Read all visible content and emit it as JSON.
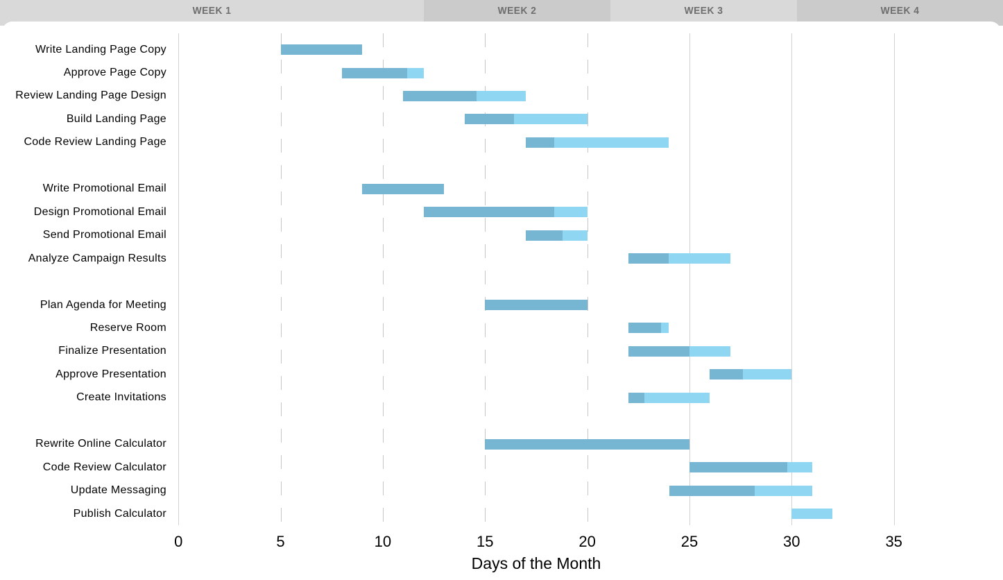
{
  "header": {
    "weeks": [
      "WEEK 1",
      "WEEK 2",
      "WEEK 3",
      "WEEK 4"
    ]
  },
  "axis": {
    "ticks": [
      "0",
      "5",
      "10",
      "15",
      "20",
      "25",
      "30",
      "35"
    ],
    "title": "Days of the Month"
  },
  "colors": {
    "bar_complete": "#76b6d2",
    "bar_remaining": "#8fd6f2",
    "header_band_light": "#d9d9d9",
    "header_band_dark": "#cbcbcb",
    "header_text": "#6e6e6e",
    "grid_solid": "#d2d2d2",
    "grid_dashed": "#c6c6c6",
    "text": "#000000"
  },
  "chart_data": {
    "type": "bar",
    "subtype": "gantt",
    "xlabel": "Days of the Month",
    "xlim": [
      0,
      40
    ],
    "x_ticks": [
      0,
      5,
      10,
      15,
      20,
      25,
      30,
      35
    ],
    "grid": "on",
    "week_bands": [
      {
        "label": "WEEK 1"
      },
      {
        "label": "WEEK 2"
      },
      {
        "label": "WEEK 3"
      },
      {
        "label": "WEEK 4"
      }
    ],
    "gridlines": [
      {
        "day": 0,
        "style": "solid"
      },
      {
        "day": 5,
        "style": "dashed"
      },
      {
        "day": 10,
        "style": "dashed"
      },
      {
        "day": 15,
        "style": "dashed"
      },
      {
        "day": 20,
        "style": "dashed"
      },
      {
        "day": 25,
        "style": "solid"
      },
      {
        "day": 30,
        "style": "solid"
      },
      {
        "day": 35,
        "style": "solid"
      }
    ],
    "bar_color_encoding": {
      "dark_blue": "portion complete",
      "light_blue": "portion remaining"
    },
    "groups": [
      {
        "tasks": [
          {
            "label": "Write Landing Page Copy",
            "start_day": 5,
            "end_day": 9,
            "percent_complete": 100
          },
          {
            "label": "Approve Page Copy",
            "start_day": 8,
            "end_day": 12,
            "percent_complete": 80
          },
          {
            "label": "Review Landing Page Design",
            "start_day": 11,
            "end_day": 17,
            "percent_complete": 60
          },
          {
            "label": "Build Landing Page",
            "start_day": 14,
            "end_day": 20,
            "percent_complete": 40
          },
          {
            "label": "Code Review Landing Page",
            "start_day": 17,
            "end_day": 24,
            "percent_complete": 20
          }
        ]
      },
      {
        "tasks": [
          {
            "label": "Write Promotional Email",
            "start_day": 9,
            "end_day": 13,
            "percent_complete": 100
          },
          {
            "label": "Design Promotional Email",
            "start_day": 12,
            "end_day": 20,
            "percent_complete": 80
          },
          {
            "label": "Send Promotional Email",
            "start_day": 17,
            "end_day": 20,
            "percent_complete": 60
          },
          {
            "label": "Analyze Campaign Results",
            "start_day": 22,
            "end_day": 27,
            "percent_complete": 40
          }
        ]
      },
      {
        "tasks": [
          {
            "label": "Plan Agenda for Meeting",
            "start_day": 15,
            "end_day": 20,
            "percent_complete": 100
          },
          {
            "label": "Reserve Room",
            "start_day": 22,
            "end_day": 24,
            "percent_complete": 80
          },
          {
            "label": "Finalize Presentation",
            "start_day": 22,
            "end_day": 27,
            "percent_complete": 60
          },
          {
            "label": "Approve Presentation",
            "start_day": 26,
            "end_day": 30,
            "percent_complete": 40
          },
          {
            "label": "Create Invitations",
            "start_day": 22,
            "end_day": 26,
            "percent_complete": 20
          }
        ]
      },
      {
        "tasks": [
          {
            "label": "Rewrite Online Calculator",
            "start_day": 15,
            "end_day": 25,
            "percent_complete": 100
          },
          {
            "label": "Code Review Calculator",
            "start_day": 25,
            "end_day": 31,
            "percent_complete": 80
          },
          {
            "label": "Update Messaging",
            "start_day": 24,
            "end_day": 31,
            "percent_complete": 60
          },
          {
            "label": "Publish Calculator",
            "start_day": 30,
            "end_day": 32,
            "percent_complete": 0
          }
        ]
      }
    ]
  }
}
